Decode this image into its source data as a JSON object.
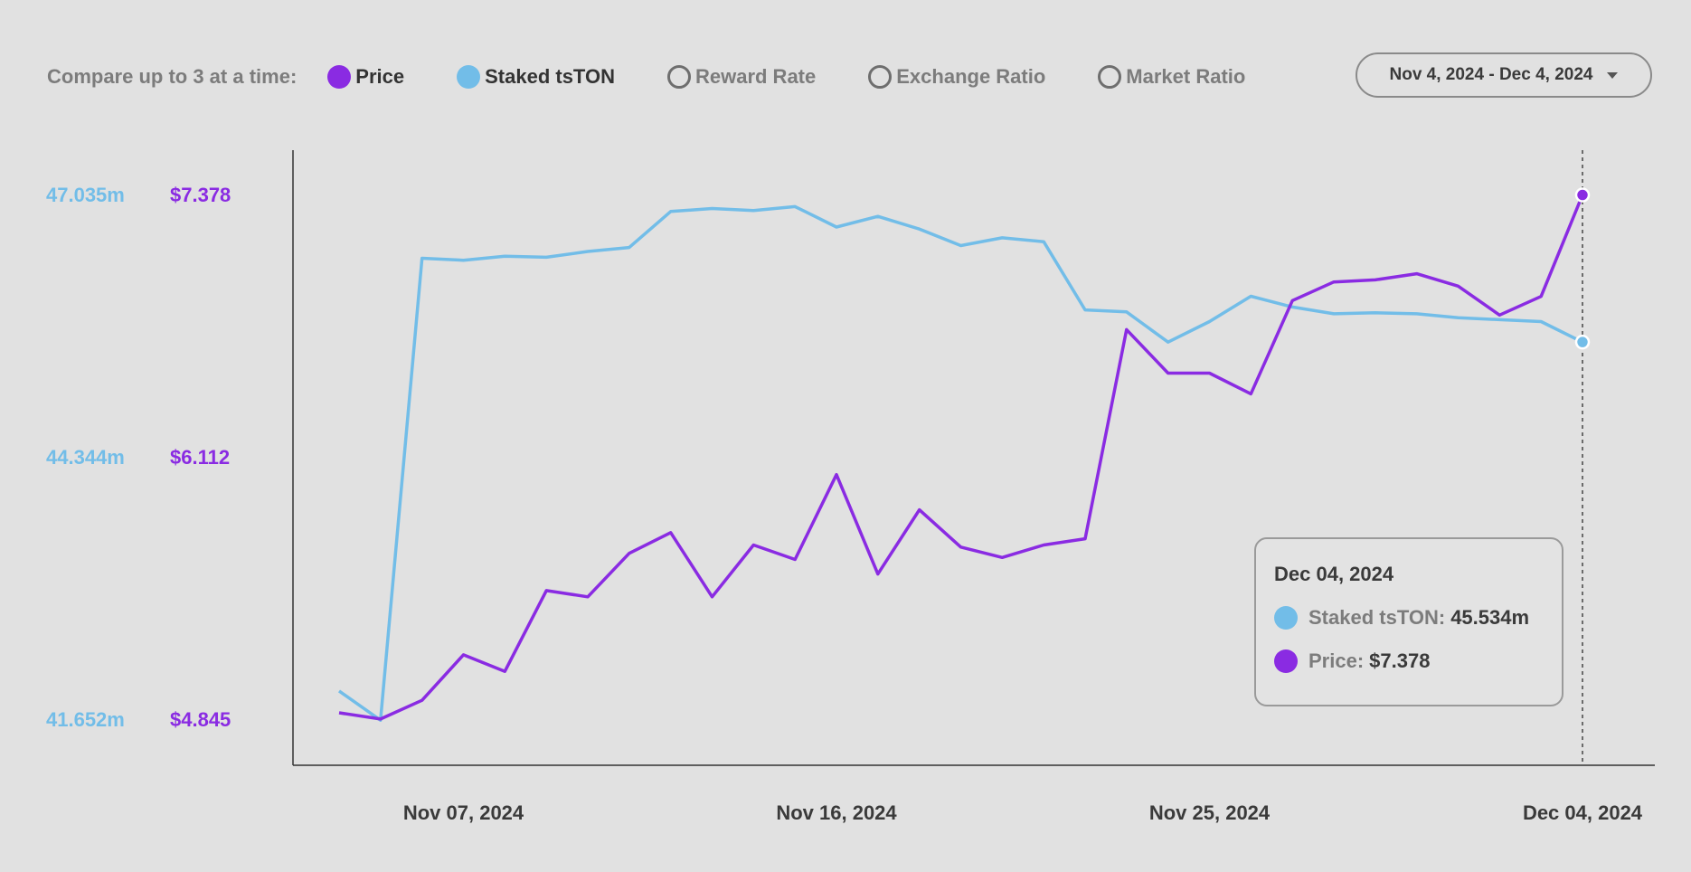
{
  "header": {
    "compare_label": "Compare up to 3 at a time:",
    "metrics": [
      {
        "label": "Price",
        "selected": true,
        "color": "#8a2be2"
      },
      {
        "label": "Staked tsTON",
        "selected": true,
        "color": "#72bde8"
      },
      {
        "label": "Reward Rate",
        "selected": false
      },
      {
        "label": "Exchange Ratio",
        "selected": false
      },
      {
        "label": "Market Ratio",
        "selected": false
      }
    ],
    "date_range": "Nov 4, 2024 - Dec 4, 2024"
  },
  "axes": {
    "left_staked_ticks": [
      "47.035m",
      "44.344m",
      "41.652m"
    ],
    "left_price_ticks": [
      "$7.378",
      "$6.112",
      "$4.845"
    ],
    "x_ticks": [
      "Nov 07, 2024",
      "Nov 16, 2024",
      "Nov 25, 2024",
      "Dec 04, 2024"
    ]
  },
  "tooltip": {
    "date": "Dec 04, 2024",
    "staked_label": "Staked tsTON:",
    "staked_value": "45.534m",
    "price_label": "Price:",
    "price_value": "$7.378"
  },
  "chart_data": {
    "type": "line",
    "x": [
      "2024-11-04",
      "2024-11-05",
      "2024-11-06",
      "2024-11-07",
      "2024-11-08",
      "2024-11-09",
      "2024-11-10",
      "2024-11-11",
      "2024-11-12",
      "2024-11-13",
      "2024-11-14",
      "2024-11-15",
      "2024-11-16",
      "2024-11-17",
      "2024-11-18",
      "2024-11-19",
      "2024-11-20",
      "2024-11-21",
      "2024-11-22",
      "2024-11-23",
      "2024-11-24",
      "2024-11-25",
      "2024-11-26",
      "2024-11-27",
      "2024-11-28",
      "2024-11-29",
      "2024-11-30",
      "2024-12-01",
      "2024-12-02",
      "2024-12-03",
      "2024-12-04"
    ],
    "x_ticks": [
      "Nov 07, 2024",
      "Nov 16, 2024",
      "Nov 25, 2024",
      "Dec 04, 2024"
    ],
    "series": [
      {
        "name": "Staked tsTON",
        "axis": "staked",
        "color": "#72bde8",
        "values": [
          41.95,
          41.65,
          46.39,
          46.37,
          46.41,
          46.4,
          46.46,
          46.5,
          46.87,
          46.9,
          46.88,
          46.92,
          46.71,
          46.82,
          46.69,
          46.52,
          46.6,
          46.56,
          45.86,
          45.84,
          45.53,
          45.74,
          46.0,
          45.89,
          45.82,
          45.83,
          45.82,
          45.78,
          45.76,
          45.74,
          45.53
        ]
      },
      {
        "name": "Price",
        "axis": "price",
        "color": "#8a2be2",
        "values": [
          4.88,
          4.85,
          4.94,
          5.16,
          5.08,
          5.47,
          5.44,
          5.65,
          5.75,
          5.44,
          5.69,
          5.62,
          6.03,
          5.55,
          5.86,
          5.68,
          5.63,
          5.69,
          5.72,
          6.73,
          6.52,
          6.52,
          6.42,
          6.87,
          6.96,
          6.97,
          7.0,
          6.94,
          6.8,
          6.89,
          7.38
        ]
      }
    ],
    "y_axes": {
      "staked": {
        "min": 41.652,
        "max": 47.035,
        "ticks": [
          "47.035m",
          "44.344m",
          "41.652m"
        ]
      },
      "price": {
        "min": 4.845,
        "max": 7.378,
        "ticks": [
          "$7.378",
          "$6.112",
          "$4.845"
        ]
      }
    },
    "grid": false,
    "legend": "top",
    "hover_index": 30
  }
}
